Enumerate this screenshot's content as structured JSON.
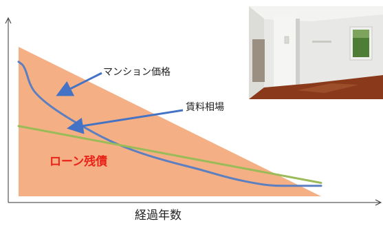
{
  "chart_data": {
    "type": "line",
    "xlabel": "経過年数",
    "ylabel": "",
    "x_axis_ticks": false,
    "y_axis_ticks": false,
    "series": [
      {
        "name": "ローン残債",
        "kind": "area",
        "color": "#f4b084",
        "x": [
          0,
          100
        ],
        "y": [
          100,
          0
        ]
      },
      {
        "name": "マンション価格",
        "kind": "line",
        "color": "#5b7fc0",
        "x": [
          0,
          2,
          4,
          7,
          12,
          20,
          30,
          40,
          50,
          60,
          70,
          80,
          85,
          90,
          100
        ],
        "y": [
          90,
          87,
          73,
          66,
          58,
          48,
          37,
          29,
          23,
          18,
          12,
          8,
          7,
          7,
          7
        ]
      },
      {
        "name": "賃料相場",
        "kind": "line",
        "color": "#9bbb59",
        "x": [
          0,
          100
        ],
        "y": [
          47,
          9
        ]
      }
    ],
    "annotations": [
      {
        "text": "マンション価格",
        "color": "#222222",
        "points_to_series": "マンション価格"
      },
      {
        "text": "賃料相場",
        "color": "#222222",
        "points_to_series": "賃料相場"
      },
      {
        "text": "ローン残債",
        "color": "#e8241a",
        "points_to_series": "ローン残債"
      }
    ]
  },
  "photo": {
    "subject": "empty-apartment-room",
    "colors": {
      "wall": "#eeeeec",
      "floor": "#8a3a1a",
      "ceiling": "#f2f2f0",
      "window_green": "#4e7d35"
    }
  },
  "colors": {
    "axis": "#333333",
    "arrow": "#4472c4"
  }
}
